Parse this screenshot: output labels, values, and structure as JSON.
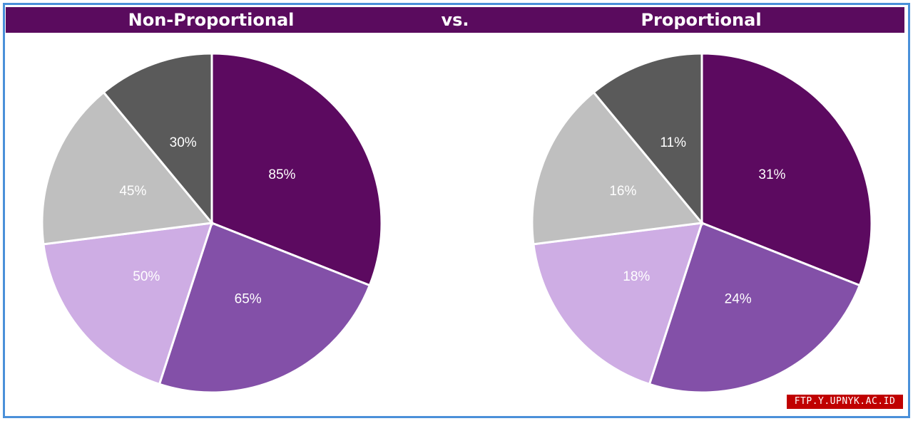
{
  "header": {
    "left_title": "Non-Proportional",
    "vs_label": "vs.",
    "right_title": "Proportional"
  },
  "watermark": "FTP.Y.UPNYK.AC.ID",
  "colors": {
    "banner": "#5a0b5e",
    "slice_1": "#5c0a60",
    "slice_2": "#8350a8",
    "slice_3": "#ceade4",
    "slice_4": "#bfbfbf",
    "slice_5": "#5a5a5a",
    "frame": "#4a90d9"
  },
  "chart_data": [
    {
      "type": "pie",
      "title": "Non-Proportional",
      "labels": [
        "85%",
        "65%",
        "50%",
        "45%",
        "30%"
      ],
      "values": [
        85,
        65,
        50,
        45,
        30
      ],
      "slice_fractions": [
        0.31,
        0.24,
        0.18,
        0.16,
        0.11
      ]
    },
    {
      "type": "pie",
      "title": "Proportional",
      "labels": [
        "31%",
        "24%",
        "18%",
        "16%",
        "11%"
      ],
      "values": [
        31,
        24,
        18,
        16,
        11
      ],
      "slice_fractions": [
        0.31,
        0.24,
        0.18,
        0.16,
        0.11
      ]
    }
  ]
}
